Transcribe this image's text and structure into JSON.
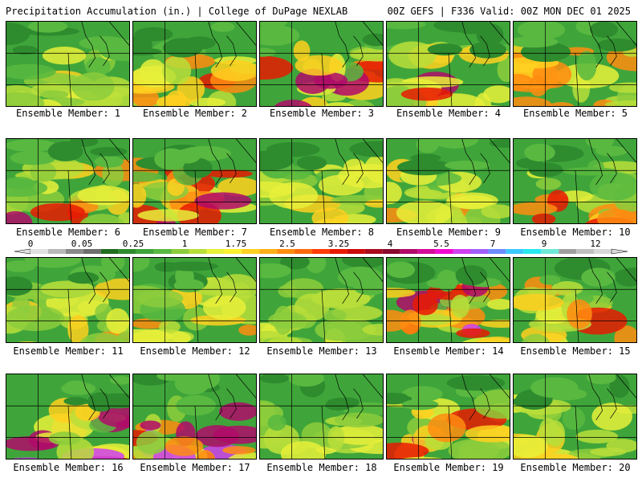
{
  "header": {
    "left_title": "Precipitation Accumulation (in.) | College of DuPage NEXLAB",
    "right_title": "00Z GEFS | F336 Valid: 00Z MON DEC 01 2025"
  },
  "member_label_prefix": "Ensemble Member:",
  "members": [
    {
      "label": "Ensemble Member: 1",
      "intensity": 0.35
    },
    {
      "label": "Ensemble Member: 2",
      "intensity": 0.55
    },
    {
      "label": "Ensemble Member: 3",
      "intensity": 0.65
    },
    {
      "label": "Ensemble Member: 4",
      "intensity": 0.7
    },
    {
      "label": "Ensemble Member: 5",
      "intensity": 0.6
    },
    {
      "label": "Ensemble Member: 6",
      "intensity": 0.7
    },
    {
      "label": "Ensemble Member: 7",
      "intensity": 0.7
    },
    {
      "label": "Ensemble Member: 8",
      "intensity": 0.3
    },
    {
      "label": "Ensemble Member: 9",
      "intensity": 0.45
    },
    {
      "label": "Ensemble Member: 10",
      "intensity": 0.6
    },
    {
      "label": "Ensemble Member: 11",
      "intensity": 0.45
    },
    {
      "label": "Ensemble Member: 12",
      "intensity": 0.4
    },
    {
      "label": "Ensemble Member: 13",
      "intensity": 0.25
    },
    {
      "label": "Ensemble Member: 14",
      "intensity": 0.8
    },
    {
      "label": "Ensemble Member: 15",
      "intensity": 0.5
    },
    {
      "label": "Ensemble Member: 16",
      "intensity": 0.8
    },
    {
      "label": "Ensemble Member: 17",
      "intensity": 0.75
    },
    {
      "label": "Ensemble Member: 18",
      "intensity": 0.25
    },
    {
      "label": "Ensemble Member: 19",
      "intensity": 0.65
    },
    {
      "label": "Ensemble Member: 20",
      "intensity": 0.3
    }
  ],
  "colorbar": {
    "labels": [
      "0",
      "0.05",
      "0.25",
      "1",
      "1.75",
      "2.5",
      "3.25",
      "4",
      "5.5",
      "7",
      "9",
      "12"
    ],
    "colors": [
      "#e0e0e0",
      "#b8b8b8",
      "#8a8a8a",
      "#6e6e6e",
      "#1f6e1f",
      "#2e8b2e",
      "#3fa53a",
      "#58b840",
      "#8ccc3c",
      "#b8de3a",
      "#e8f03a",
      "#fff030",
      "#ffd020",
      "#ffb018",
      "#ff8c10",
      "#ff6a0c",
      "#ff3c08",
      "#e81a04",
      "#cc0a0a",
      "#aa0a1e",
      "#8a0a30",
      "#b00a6a",
      "#d40a9a",
      "#f00ad0",
      "#d040f0",
      "#a060f8",
      "#6e8cff",
      "#3cc8ff",
      "#28e8f0",
      "#70e8d8",
      "#a0a0a0",
      "#c0c0c0",
      "#d8d8d8"
    ]
  }
}
